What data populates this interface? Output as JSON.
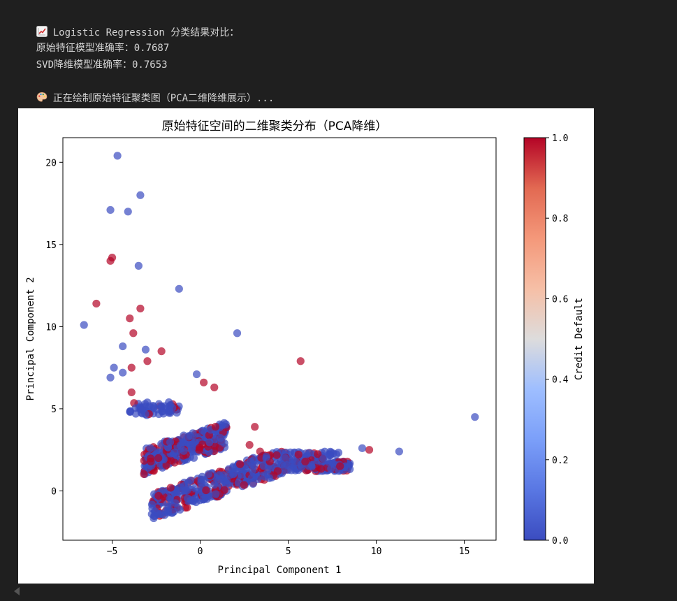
{
  "output": {
    "line1": "Logistic Regression 分类结果对比：",
    "line1_icon": "chart-increasing-icon",
    "line2": "原始特征模型准确率：0.7687",
    "line3": "SVD降维模型准确率：0.7653",
    "line4": "正在绘制原始特征聚类图（PCA二维降维展示）...",
    "line4_icon": "artist-palette-icon"
  },
  "chart_data": {
    "type": "scatter",
    "title": "原始特征空间的二维聚类分布（PCA降维）",
    "xlabel": "Principal Component 1",
    "ylabel": "Principal Component 2",
    "xlim": [
      -7.8,
      16.8
    ],
    "ylim": [
      -3.0,
      21.5
    ],
    "xticks": [
      -5,
      0,
      5,
      10,
      15
    ],
    "yticks": [
      0,
      5,
      10,
      15,
      20
    ],
    "xtick_labels": [
      "−5",
      "0",
      "5",
      "10",
      "15"
    ],
    "ytick_labels": [
      "0",
      "5",
      "10",
      "15",
      "20"
    ],
    "colormap": "coolwarm",
    "colorbar_label": "Credit Default",
    "colorbar_range": [
      0.0,
      1.0
    ],
    "colorbar_ticks": [
      "0.0",
      "0.2",
      "0.4",
      "0.6",
      "0.8",
      "1.0"
    ],
    "colors": {
      "class_0": "#3b4cc0",
      "class_1": "#b40426"
    },
    "grid": false,
    "outlier_points": [
      {
        "x": -4.7,
        "y": 20.4,
        "c": 0
      },
      {
        "x": -3.4,
        "y": 18.0,
        "c": 0
      },
      {
        "x": -5.1,
        "y": 17.1,
        "c": 0
      },
      {
        "x": -4.1,
        "y": 17.0,
        "c": 0
      },
      {
        "x": -5.0,
        "y": 14.2,
        "c": 1
      },
      {
        "x": -5.1,
        "y": 14.0,
        "c": 1
      },
      {
        "x": -3.5,
        "y": 13.7,
        "c": 0
      },
      {
        "x": -1.2,
        "y": 12.3,
        "c": 0
      },
      {
        "x": -5.9,
        "y": 11.4,
        "c": 1
      },
      {
        "x": -3.4,
        "y": 11.1,
        "c": 1
      },
      {
        "x": -4.0,
        "y": 10.5,
        "c": 1
      },
      {
        "x": -6.6,
        "y": 10.1,
        "c": 0
      },
      {
        "x": -3.8,
        "y": 9.6,
        "c": 1
      },
      {
        "x": 2.1,
        "y": 9.6,
        "c": 0
      },
      {
        "x": -4.4,
        "y": 8.8,
        "c": 0
      },
      {
        "x": -3.1,
        "y": 8.6,
        "c": 0
      },
      {
        "x": -2.2,
        "y": 8.5,
        "c": 1
      },
      {
        "x": 5.7,
        "y": 7.9,
        "c": 1
      },
      {
        "x": -3.0,
        "y": 7.9,
        "c": 1
      },
      {
        "x": -4.9,
        "y": 7.5,
        "c": 0
      },
      {
        "x": -3.9,
        "y": 7.5,
        "c": 1
      },
      {
        "x": -4.4,
        "y": 7.2,
        "c": 0
      },
      {
        "x": -5.1,
        "y": 6.9,
        "c": 0
      },
      {
        "x": -0.2,
        "y": 7.1,
        "c": 0
      },
      {
        "x": 0.2,
        "y": 6.6,
        "c": 1
      },
      {
        "x": 0.8,
        "y": 6.3,
        "c": 1
      },
      {
        "x": -3.9,
        "y": 6.0,
        "c": 1
      },
      {
        "x": 15.6,
        "y": 4.5,
        "c": 0
      },
      {
        "x": 11.3,
        "y": 2.4,
        "c": 0
      },
      {
        "x": 9.6,
        "y": 2.5,
        "c": 1
      },
      {
        "x": 9.2,
        "y": 2.6,
        "c": 0
      },
      {
        "x": 2.8,
        "y": 2.8,
        "c": 1
      },
      {
        "x": 3.4,
        "y": 2.4,
        "c": 1
      },
      {
        "x": 3.1,
        "y": 3.9,
        "c": 1
      }
    ],
    "clusters": [
      {
        "name": "upper-band",
        "x0": -4.0,
        "x1": -1.2,
        "y0": 4.6,
        "y1": 5.4,
        "n": 60,
        "red_ratio": 0.15
      },
      {
        "name": "middle-band",
        "x0": -3.2,
        "x1": 1.5,
        "y0": 1.0,
        "y1": 4.2,
        "slope": 0.35,
        "n": 320,
        "red_ratio": 0.3
      },
      {
        "name": "lower-band",
        "x0": -2.8,
        "x1": 8.5,
        "y0": -1.8,
        "y1": 1.2,
        "slope": 0.38,
        "n": 620,
        "red_ratio": 0.28
      }
    ]
  }
}
